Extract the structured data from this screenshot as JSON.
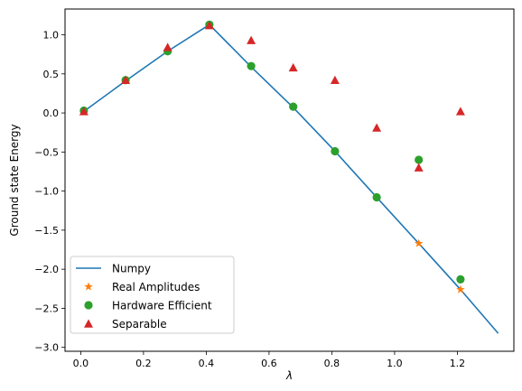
{
  "chart_data": {
    "type": "line",
    "xlabel": "λ",
    "ylabel": "Ground state Energy",
    "xlim": [
      -0.05,
      1.38
    ],
    "ylim": [
      -3.05,
      1.33
    ],
    "xticks": [
      0.0,
      0.2,
      0.4,
      0.6,
      0.8,
      1.0,
      1.2
    ],
    "xtick_labels": [
      "0.0",
      "0.2",
      "0.4",
      "0.6",
      "0.8",
      "1.0",
      "1.2"
    ],
    "yticks": [
      1.0,
      0.5,
      0.0,
      -0.5,
      -1.0,
      -1.5,
      -2.0,
      -2.5,
      -3.0
    ],
    "ytick_labels": [
      "1.0",
      "0.5",
      "0.0",
      "−0.5",
      "−1.0",
      "−1.5",
      "−2.0",
      "−2.5",
      "−3.0"
    ],
    "legend_position": "lower-left",
    "series": [
      {
        "name": "Numpy",
        "kind": "line",
        "marker": "none",
        "color": "#1f77b4",
        "points": [
          [
            0.01,
            0.02
          ],
          [
            0.143,
            0.41
          ],
          [
            0.277,
            0.79
          ],
          [
            0.41,
            1.13
          ],
          [
            0.543,
            0.59
          ],
          [
            0.677,
            0.07
          ],
          [
            0.81,
            -0.49
          ],
          [
            0.943,
            -1.08
          ],
          [
            1.077,
            -1.67
          ],
          [
            1.21,
            -2.26
          ],
          [
            1.33,
            -2.82
          ]
        ]
      },
      {
        "name": "Real Amplitudes",
        "kind": "scatter",
        "marker": "star",
        "color": "#ff7f0e",
        "points": [
          [
            1.077,
            -1.67
          ],
          [
            1.21,
            -2.26
          ]
        ]
      },
      {
        "name": "Hardware Efficient",
        "kind": "scatter",
        "marker": "circle",
        "color": "#2ca02c",
        "points": [
          [
            0.01,
            0.03
          ],
          [
            0.143,
            0.42
          ],
          [
            0.277,
            0.79
          ],
          [
            0.41,
            1.13
          ],
          [
            0.543,
            0.6
          ],
          [
            0.677,
            0.08
          ],
          [
            0.81,
            -0.49
          ],
          [
            0.943,
            -1.08
          ],
          [
            1.077,
            -0.6
          ],
          [
            1.21,
            -2.13
          ]
        ]
      },
      {
        "name": "Separable",
        "kind": "scatter",
        "marker": "triangle",
        "color": "#d62728",
        "points": [
          [
            0.01,
            0.02
          ],
          [
            0.143,
            0.42
          ],
          [
            0.277,
            0.84
          ],
          [
            0.41,
            1.12
          ],
          [
            0.543,
            0.93
          ],
          [
            0.677,
            0.58
          ],
          [
            0.81,
            0.42
          ],
          [
            0.943,
            -0.19
          ],
          [
            1.077,
            -0.7
          ],
          [
            1.21,
            0.02
          ]
        ]
      }
    ]
  }
}
